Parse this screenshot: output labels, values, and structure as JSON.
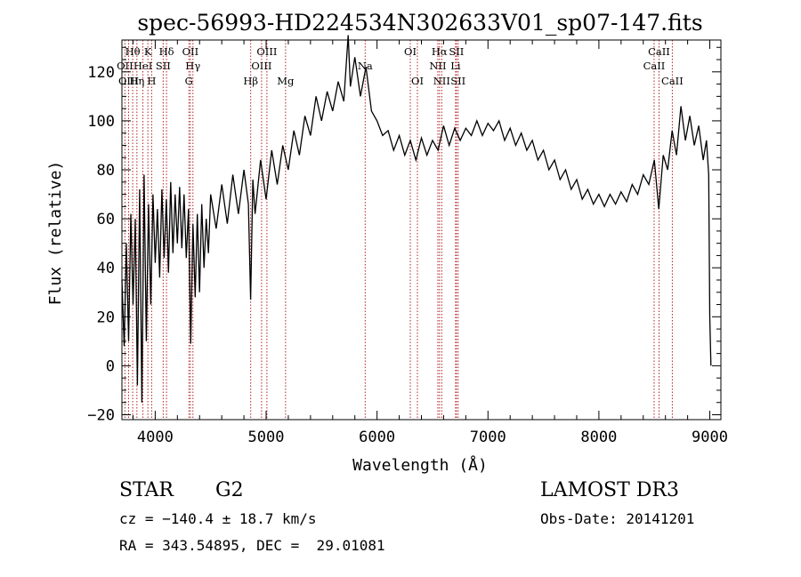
{
  "chart_data": {
    "type": "line",
    "title": "spec-56993-HD224534N302633V01_sp07-147.fits",
    "xlabel": "Wavelength (Å)",
    "ylabel": "Flux (relative)",
    "xlim": [
      3700,
      9100
    ],
    "ylim": [
      -22,
      133
    ],
    "xticks": [
      4000,
      5000,
      6000,
      7000,
      8000,
      9000
    ],
    "yticks": [
      -20,
      0,
      20,
      40,
      60,
      80,
      100,
      120
    ],
    "x_minor_step": 200,
    "y_minor_step": 5,
    "grid": false,
    "line_color": "#000000",
    "marker_color": "#b22222",
    "lines": [
      {
        "label": "Hθ",
        "x": 3797,
        "row": 0
      },
      {
        "label": "K",
        "x": 3934,
        "row": 0
      },
      {
        "label": "Hδ",
        "x": 4102,
        "row": 0
      },
      {
        "label": "OII",
        "x": 4317,
        "row": 0
      },
      {
        "label": "OIII",
        "x": 5007,
        "row": 0
      },
      {
        "label": "OI",
        "x": 6300,
        "row": 0
      },
      {
        "label": "Hα",
        "x": 6563,
        "row": 0
      },
      {
        "label": "SII",
        "x": 6716,
        "row": 0
      },
      {
        "label": "CaII",
        "x": 8542,
        "row": 0
      },
      {
        "label": "OII",
        "x": 3727,
        "row": 1
      },
      {
        "label": "HeI",
        "x": 3889,
        "row": 1
      },
      {
        "label": "SII",
        "x": 4072,
        "row": 1
      },
      {
        "label": "Hγ",
        "x": 4340,
        "row": 1
      },
      {
        "label": "OIII",
        "x": 4959,
        "row": 1
      },
      {
        "label": "Na",
        "x": 5893,
        "row": 1
      },
      {
        "label": "NII",
        "x": 6548,
        "row": 1
      },
      {
        "label": "Li",
        "x": 6708,
        "row": 1
      },
      {
        "label": "CaII",
        "x": 8498,
        "row": 1
      },
      {
        "label": "OIII",
        "x": 3760,
        "row": 2
      },
      {
        "label": "Hη",
        "x": 3835,
        "row": 2
      },
      {
        "label": "H",
        "x": 3968,
        "row": 2
      },
      {
        "label": "G",
        "x": 4304,
        "row": 2
      },
      {
        "label": "Hβ",
        "x": 4861,
        "row": 2
      },
      {
        "label": "Mg",
        "x": 5175,
        "row": 2
      },
      {
        "label": "OI",
        "x": 6364,
        "row": 2
      },
      {
        "label": "NII",
        "x": 6583,
        "row": 2
      },
      {
        "label": "SII",
        "x": 6731,
        "row": 2
      },
      {
        "label": "CaII",
        "x": 8662,
        "row": 2
      }
    ],
    "spectrum": [
      [
        3700,
        35
      ],
      [
        3720,
        8
      ],
      [
        3740,
        50
      ],
      [
        3760,
        10
      ],
      [
        3780,
        62
      ],
      [
        3800,
        25
      ],
      [
        3820,
        60
      ],
      [
        3840,
        -8
      ],
      [
        3860,
        72
      ],
      [
        3880,
        -15
      ],
      [
        3900,
        78
      ],
      [
        3920,
        10
      ],
      [
        3940,
        66
      ],
      [
        3960,
        25
      ],
      [
        3980,
        70
      ],
      [
        4000,
        42
      ],
      [
        4020,
        64
      ],
      [
        4040,
        36
      ],
      [
        4060,
        72
      ],
      [
        4080,
        44
      ],
      [
        4100,
        68
      ],
      [
        4120,
        38
      ],
      [
        4140,
        75
      ],
      [
        4160,
        46
      ],
      [
        4180,
        70
      ],
      [
        4200,
        50
      ],
      [
        4220,
        73
      ],
      [
        4240,
        48
      ],
      [
        4260,
        70
      ],
      [
        4280,
        44
      ],
      [
        4300,
        64
      ],
      [
        4320,
        9
      ],
      [
        4340,
        58
      ],
      [
        4360,
        28
      ],
      [
        4380,
        62
      ],
      [
        4400,
        30
      ],
      [
        4420,
        66
      ],
      [
        4440,
        40
      ],
      [
        4460,
        60
      ],
      [
        4480,
        46
      ],
      [
        4500,
        70
      ],
      [
        4550,
        56
      ],
      [
        4600,
        74
      ],
      [
        4650,
        58
      ],
      [
        4700,
        78
      ],
      [
        4750,
        62
      ],
      [
        4800,
        80
      ],
      [
        4840,
        66
      ],
      [
        4860,
        27
      ],
      [
        4880,
        76
      ],
      [
        4900,
        62
      ],
      [
        4950,
        84
      ],
      [
        5000,
        68
      ],
      [
        5050,
        88
      ],
      [
        5100,
        74
      ],
      [
        5150,
        90
      ],
      [
        5200,
        80
      ],
      [
        5250,
        96
      ],
      [
        5300,
        86
      ],
      [
        5350,
        102
      ],
      [
        5400,
        94
      ],
      [
        5450,
        110
      ],
      [
        5500,
        100
      ],
      [
        5550,
        112
      ],
      [
        5600,
        104
      ],
      [
        5650,
        116
      ],
      [
        5700,
        108
      ],
      [
        5740,
        135
      ],
      [
        5760,
        114
      ],
      [
        5800,
        126
      ],
      [
        5850,
        110
      ],
      [
        5900,
        122
      ],
      [
        5950,
        104
      ],
      [
        6000,
        100
      ],
      [
        6050,
        94
      ],
      [
        6100,
        96
      ],
      [
        6150,
        88
      ],
      [
        6200,
        94
      ],
      [
        6250,
        86
      ],
      [
        6300,
        92
      ],
      [
        6350,
        84
      ],
      [
        6400,
        93
      ],
      [
        6450,
        86
      ],
      [
        6500,
        92
      ],
      [
        6550,
        88
      ],
      [
        6600,
        98
      ],
      [
        6650,
        90
      ],
      [
        6700,
        97
      ],
      [
        6750,
        92
      ],
      [
        6800,
        97
      ],
      [
        6850,
        94
      ],
      [
        6900,
        100
      ],
      [
        6950,
        94
      ],
      [
        7000,
        99
      ],
      [
        7050,
        96
      ],
      [
        7100,
        100
      ],
      [
        7150,
        92
      ],
      [
        7200,
        97
      ],
      [
        7250,
        90
      ],
      [
        7300,
        95
      ],
      [
        7350,
        88
      ],
      [
        7400,
        92
      ],
      [
        7450,
        84
      ],
      [
        7500,
        88
      ],
      [
        7550,
        80
      ],
      [
        7600,
        84
      ],
      [
        7650,
        76
      ],
      [
        7700,
        80
      ],
      [
        7750,
        72
      ],
      [
        7800,
        76
      ],
      [
        7850,
        68
      ],
      [
        7900,
        72
      ],
      [
        7950,
        66
      ],
      [
        8000,
        70
      ],
      [
        8050,
        65
      ],
      [
        8100,
        70
      ],
      [
        8150,
        66
      ],
      [
        8200,
        71
      ],
      [
        8250,
        67
      ],
      [
        8300,
        74
      ],
      [
        8350,
        70
      ],
      [
        8400,
        78
      ],
      [
        8450,
        74
      ],
      [
        8500,
        84
      ],
      [
        8540,
        64
      ],
      [
        8580,
        86
      ],
      [
        8620,
        80
      ],
      [
        8660,
        96
      ],
      [
        8700,
        86
      ],
      [
        8740,
        106
      ],
      [
        8780,
        92
      ],
      [
        8820,
        102
      ],
      [
        8860,
        90
      ],
      [
        8900,
        98
      ],
      [
        8940,
        84
      ],
      [
        8970,
        92
      ],
      [
        8990,
        78
      ],
      [
        9000,
        20
      ],
      [
        9010,
        0
      ]
    ]
  },
  "info": {
    "object_type": "STAR",
    "subclass": "G2",
    "survey": "LAMOST DR3",
    "cz": "cz = −140.4 ± 18.7 km/s",
    "obs_date": "Obs-Date: 20141201",
    "coords": "RA = 343.54895, DEC =  29.01081"
  }
}
